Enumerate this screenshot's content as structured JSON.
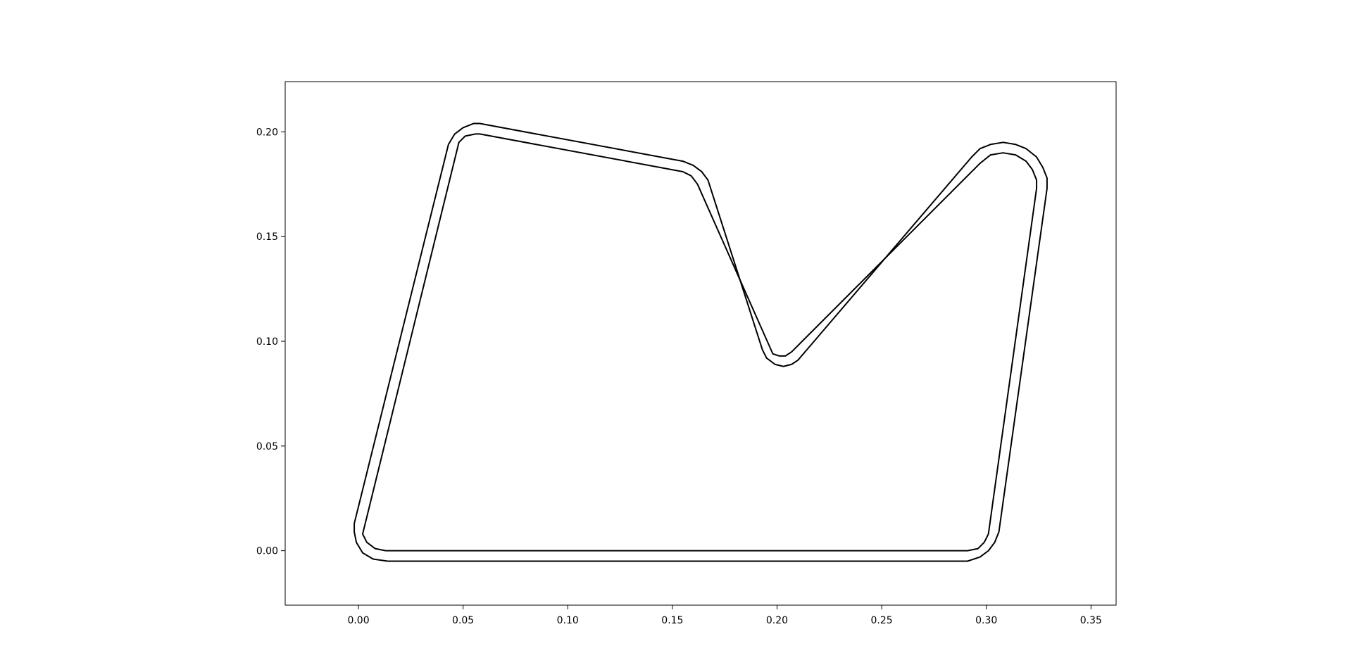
{
  "chart_data": {
    "type": "line",
    "title": "",
    "xlabel": "",
    "ylabel": "",
    "xlim": [
      -0.035,
      0.362
    ],
    "ylim": [
      -0.026,
      0.224
    ],
    "grid": false,
    "xticks": [
      0.0,
      0.05,
      0.1,
      0.15,
      0.2,
      0.25,
      0.3,
      0.35
    ],
    "xtick_labels": [
      "0.00",
      "0.05",
      "0.10",
      "0.15",
      "0.20",
      "0.25",
      "0.30",
      "0.35"
    ],
    "yticks": [
      0.0,
      0.05,
      0.1,
      0.15,
      0.2
    ],
    "ytick_labels": [
      "0.00",
      "0.05",
      "0.10",
      "0.15",
      "0.20"
    ],
    "series": [
      {
        "id": "inner-boundary",
        "color": "#000000",
        "points": [
          [
            0.013,
            0.0
          ],
          [
            0.008,
            0.001
          ],
          [
            0.004,
            0.004
          ],
          [
            0.002,
            0.008
          ],
          [
            0.003,
            0.012
          ],
          [
            0.048,
            0.195
          ],
          [
            0.051,
            0.198
          ],
          [
            0.056,
            0.199
          ],
          [
            0.058,
            0.199
          ],
          [
            0.155,
            0.181
          ],
          [
            0.159,
            0.179
          ],
          [
            0.162,
            0.175
          ],
          [
            0.198,
            0.094
          ],
          [
            0.201,
            0.093
          ],
          [
            0.204,
            0.093
          ],
          [
            0.207,
            0.095
          ],
          [
            0.297,
            0.185
          ],
          [
            0.302,
            0.189
          ],
          [
            0.308,
            0.19
          ],
          [
            0.314,
            0.189
          ],
          [
            0.319,
            0.186
          ],
          [
            0.322,
            0.182
          ],
          [
            0.324,
            0.177
          ],
          [
            0.324,
            0.173
          ],
          [
            0.301,
            0.008
          ],
          [
            0.299,
            0.004
          ],
          [
            0.296,
            0.001
          ],
          [
            0.291,
            0.0
          ],
          [
            0.013,
            0.0
          ]
        ]
      },
      {
        "id": "outer-boundary",
        "color": "#000000",
        "points": [
          [
            0.014,
            -0.005
          ],
          [
            0.007,
            -0.004
          ],
          [
            0.002,
            -0.001
          ],
          [
            -0.001,
            0.004
          ],
          [
            -0.002,
            0.009
          ],
          [
            -0.002,
            0.013
          ],
          [
            0.043,
            0.194
          ],
          [
            0.046,
            0.199
          ],
          [
            0.05,
            0.202
          ],
          [
            0.055,
            0.204
          ],
          [
            0.058,
            0.204
          ],
          [
            0.155,
            0.186
          ],
          [
            0.16,
            0.184
          ],
          [
            0.164,
            0.181
          ],
          [
            0.167,
            0.177
          ],
          [
            0.193,
            0.096
          ],
          [
            0.195,
            0.092
          ],
          [
            0.199,
            0.089
          ],
          [
            0.203,
            0.088
          ],
          [
            0.207,
            0.089
          ],
          [
            0.21,
            0.091
          ],
          [
            0.293,
            0.188
          ],
          [
            0.297,
            0.192
          ],
          [
            0.302,
            0.194
          ],
          [
            0.308,
            0.195
          ],
          [
            0.314,
            0.194
          ],
          [
            0.319,
            0.192
          ],
          [
            0.324,
            0.188
          ],
          [
            0.327,
            0.183
          ],
          [
            0.329,
            0.178
          ],
          [
            0.329,
            0.173
          ],
          [
            0.306,
            0.009
          ],
          [
            0.304,
            0.004
          ],
          [
            0.301,
            0.0
          ],
          [
            0.297,
            -0.003
          ],
          [
            0.291,
            -0.005
          ],
          [
            0.014,
            -0.005
          ]
        ]
      }
    ]
  }
}
